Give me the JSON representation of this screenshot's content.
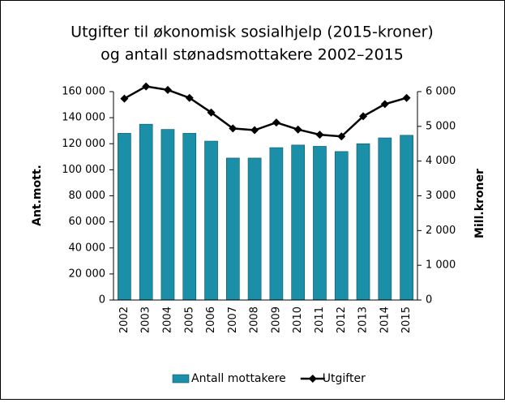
{
  "chart_data": {
    "type": "bar",
    "title": [
      "Utgifter til økonomisk sosialhjelp (2015-kroner)",
      "og antall stønadsmottakere 2002–2015"
    ],
    "ylabel": "Ant.mott.",
    "y2label": "Mill.kroner",
    "categories": [
      "2002",
      "2003",
      "2004",
      "2005",
      "2006",
      "2007",
      "2008",
      "2009",
      "2010",
      "2011",
      "2012",
      "2013",
      "2014",
      "2015"
    ],
    "series": [
      {
        "name": "Antall mottakere",
        "type": "bar",
        "axis": "y",
        "color": "#1b8ea8",
        "values": [
          128000,
          135000,
          131000,
          128000,
          122000,
          109000,
          109000,
          117000,
          119000,
          118000,
          114000,
          120000,
          124500,
          126500
        ]
      },
      {
        "name": "Utgifter",
        "type": "line",
        "axis": "y2",
        "color": "#000000",
        "values": [
          5800,
          6150,
          6050,
          5820,
          5400,
          4940,
          4890,
          5110,
          4910,
          4760,
          4710,
          5290,
          5640,
          5820
        ]
      }
    ],
    "ylim": [
      0,
      160000
    ],
    "yticks": [
      0,
      {
        "value": 20000,
        "label": "20 000"
      },
      {
        "value": 40000,
        "label": "40 000"
      },
      {
        "value": 60000,
        "label": "60 000"
      },
      {
        "value": 80000,
        "label": "80 000"
      },
      {
        "value": 100000,
        "label": "100 000"
      },
      {
        "value": 120000,
        "label": "120 000"
      },
      {
        "value": 140000,
        "label": "140 000"
      },
      {
        "value": 160000,
        "label": "160 000"
      }
    ],
    "y2lim": [
      0,
      6000
    ],
    "y2ticks": [
      0,
      {
        "value": 1000,
        "label": "1 000"
      },
      {
        "value": 2000,
        "label": "2 000"
      },
      {
        "value": 3000,
        "label": "3 000"
      },
      {
        "value": 4000,
        "label": "4 000"
      },
      {
        "value": 5000,
        "label": "5 000"
      },
      {
        "value": 6000,
        "label": "6 000"
      }
    ],
    "legend": "bottom"
  }
}
